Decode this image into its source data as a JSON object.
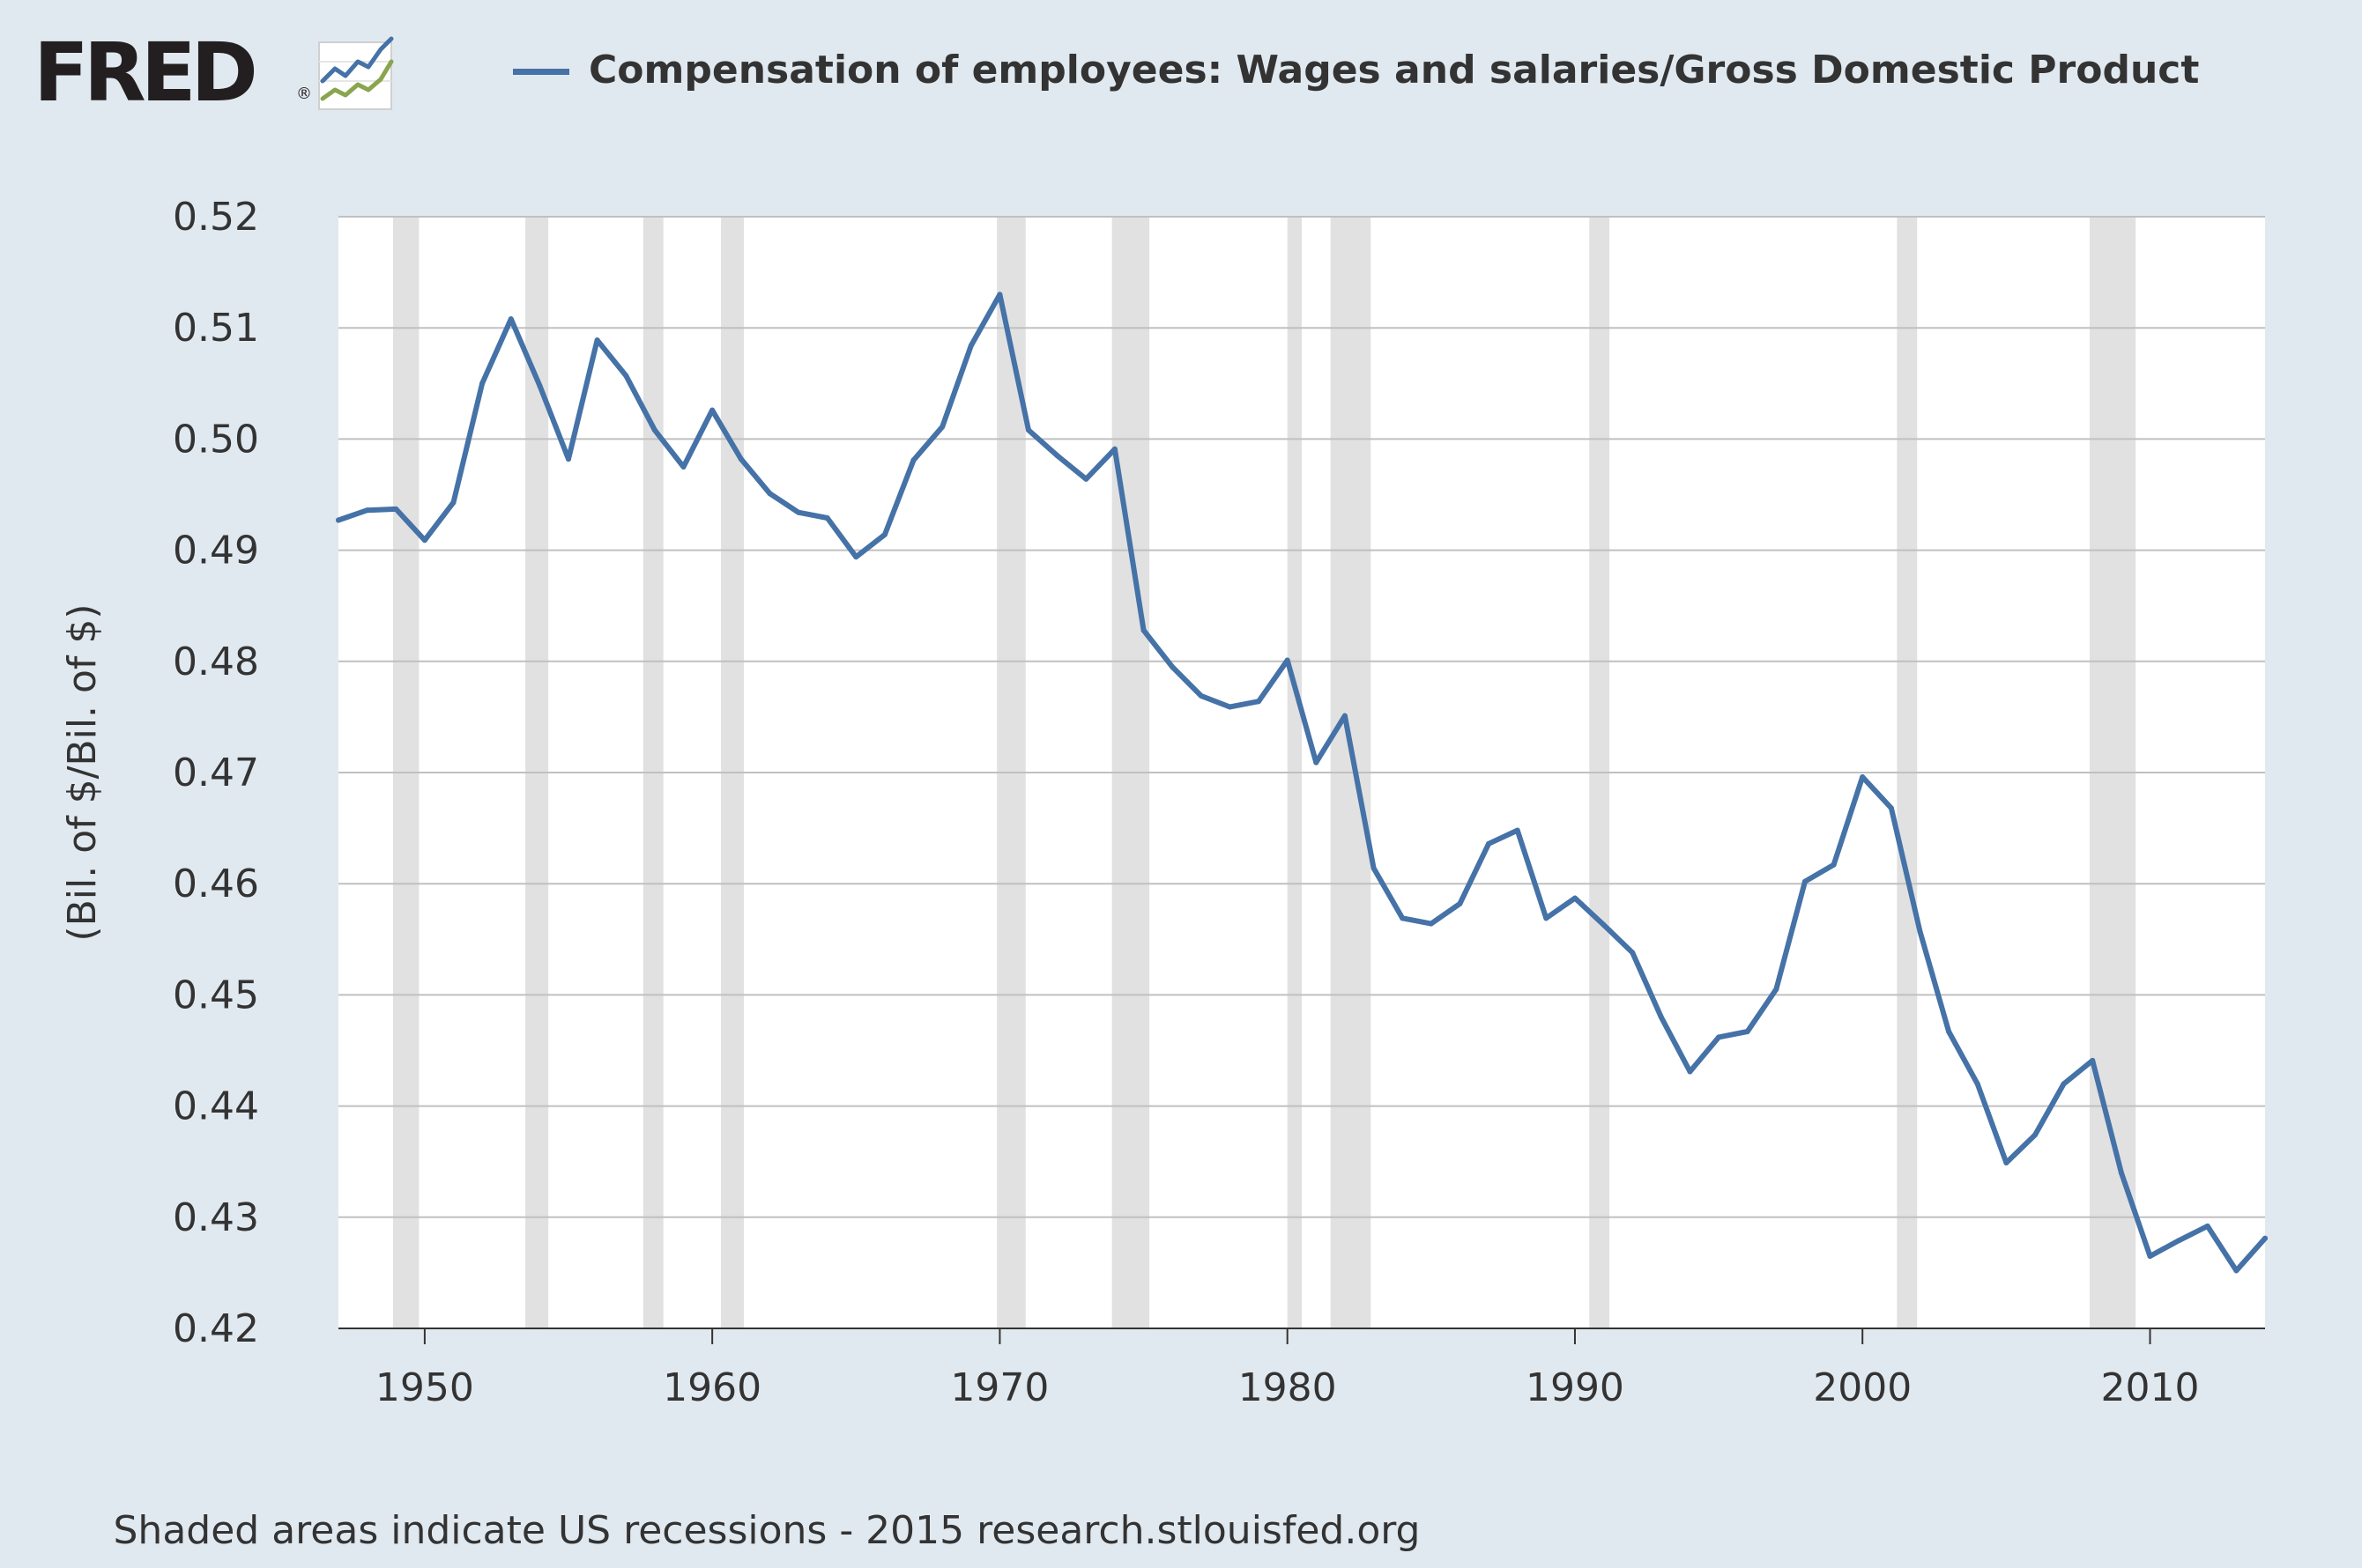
{
  "logo": {
    "text": "FRED",
    "reg": "®",
    "icon": "fred-chart-logo-icon"
  },
  "footer": {
    "text": "Shaded areas indicate US recessions - 2015 research.stlouisfed.org"
  },
  "colors": {
    "background": "#e1e9f0",
    "plot_background": "#ffffff",
    "series": "#4572a7",
    "recession": "#e1e1e1",
    "grid": "#c0c0c0",
    "text": "#333333"
  },
  "chart_data": {
    "type": "line",
    "title": "",
    "xlabel": "",
    "ylabel": "(Bil. of $/Bil. of $)",
    "xlim": [
      1947,
      2014
    ],
    "ylim": [
      0.42,
      0.52
    ],
    "yticks": [
      "0.42",
      "0.43",
      "0.44",
      "0.45",
      "0.46",
      "0.47",
      "0.48",
      "0.49",
      "0.50",
      "0.51",
      "0.52"
    ],
    "xticks": [
      "1950",
      "1960",
      "1970",
      "1980",
      "1990",
      "2000",
      "2010"
    ],
    "grid": true,
    "legend_position": "top",
    "recessions": [
      [
        1948.9,
        1949.8
      ],
      [
        1953.5,
        1954.3
      ],
      [
        1957.6,
        1958.3
      ],
      [
        1960.3,
        1961.1
      ],
      [
        1969.9,
        1970.9
      ],
      [
        1973.9,
        1975.2
      ],
      [
        1980.0,
        1980.5
      ],
      [
        1981.5,
        1982.9
      ],
      [
        1990.5,
        1991.2
      ],
      [
        2001.2,
        2001.9
      ],
      [
        2007.9,
        2009.5
      ]
    ],
    "series": [
      {
        "name": "Compensation of employees: Wages and salaries/Gross Domestic Product",
        "x": [
          1947,
          1948,
          1949,
          1950,
          1951,
          1952,
          1953,
          1954,
          1955,
          1956,
          1957,
          1958,
          1959,
          1960,
          1961,
          1962,
          1963,
          1964,
          1965,
          1966,
          1967,
          1968,
          1969,
          1970,
          1971,
          1972,
          1973,
          1974,
          1975,
          1976,
          1977,
          1978,
          1979,
          1980,
          1981,
          1982,
          1983,
          1984,
          1985,
          1986,
          1987,
          1988,
          1989,
          1990,
          1991,
          1992,
          1993,
          1994,
          1995,
          1996,
          1997,
          1998,
          1999,
          2000,
          2001,
          2002,
          2003,
          2004,
          2005,
          2006,
          2007,
          2008,
          2009,
          2010,
          2011,
          2012,
          2013,
          2014
        ],
        "values": [
          0.4927,
          0.4936,
          0.4937,
          0.4909,
          0.4943,
          0.505,
          0.5108,
          0.5048,
          0.4982,
          0.5089,
          0.5057,
          0.5008,
          0.4975,
          0.5026,
          0.4982,
          0.4951,
          0.4934,
          0.4929,
          0.4894,
          0.4914,
          0.4981,
          0.5011,
          0.5084,
          0.513,
          0.5008,
          0.4985,
          0.4964,
          0.4991,
          0.4828,
          0.4795,
          0.4769,
          0.4759,
          0.4764,
          0.4801,
          0.4709,
          0.4751,
          0.4614,
          0.4569,
          0.4564,
          0.4582,
          0.4636,
          0.4648,
          0.4569,
          0.4587,
          0.4563,
          0.4538,
          0.448,
          0.4431,
          0.4462,
          0.4467,
          0.4505,
          0.4602,
          0.4617,
          0.4696,
          0.4668,
          0.4557,
          0.4467,
          0.442,
          0.4349,
          0.4374,
          0.442,
          0.4441,
          0.434,
          0.4265,
          0.4279,
          0.4292,
          0.4252,
          0.4281
        ]
      }
    ]
  }
}
